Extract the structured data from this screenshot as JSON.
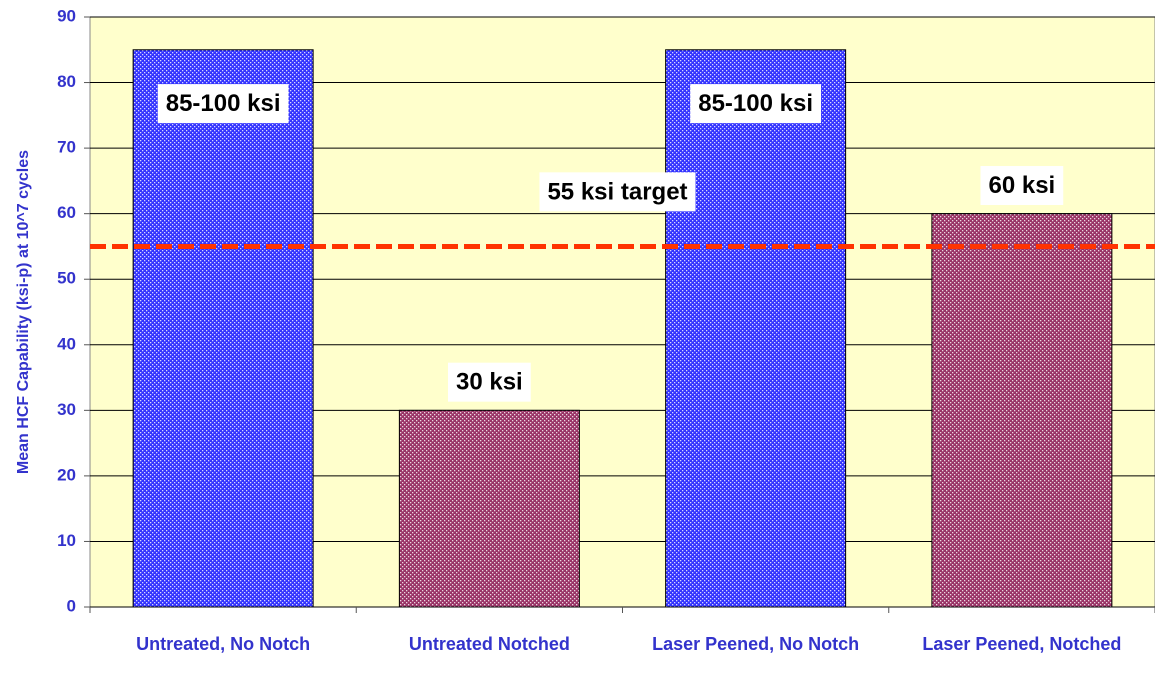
{
  "chart_data": {
    "type": "bar",
    "y_label": "Mean HCF Capability (ksi-p) at 10^7 cycles",
    "categories": [
      "Untreated, No Notch",
      "Untreated Notched",
      "Laser Peened, No Notch",
      "Laser Peened, Notched"
    ],
    "values": [
      85,
      30,
      85,
      60
    ],
    "value_labels": [
      "85-100 ksi",
      "30 ksi",
      "85-100 ksi",
      "60 ksi"
    ],
    "colors": [
      "#3333ff",
      "#993366",
      "#3333ff",
      "#993366"
    ],
    "ylim": [
      0,
      90
    ],
    "yticks": [
      0,
      10,
      20,
      30,
      40,
      50,
      60,
      70,
      80,
      90
    ],
    "grid": true,
    "target": {
      "value": 55,
      "label": "55 ksi target",
      "color": "#ff3300"
    }
  }
}
